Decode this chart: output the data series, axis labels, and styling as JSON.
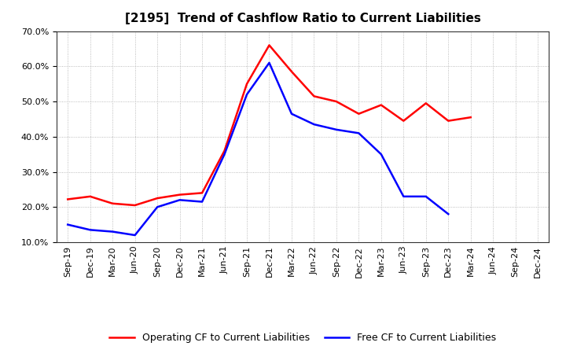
{
  "title": "[2195]  Trend of Cashflow Ratio to Current Liabilities",
  "x_labels": [
    "Sep-19",
    "Dec-19",
    "Mar-20",
    "Jun-20",
    "Sep-20",
    "Dec-20",
    "Mar-21",
    "Jun-21",
    "Sep-21",
    "Dec-21",
    "Mar-22",
    "Jun-22",
    "Sep-22",
    "Dec-22",
    "Mar-23",
    "Jun-23",
    "Sep-23",
    "Dec-23",
    "Mar-24",
    "Jun-24",
    "Sep-24",
    "Dec-24"
  ],
  "operating_cf": [
    22.2,
    23.0,
    21.0,
    20.5,
    22.5,
    23.5,
    24.0,
    36.0,
    55.0,
    66.0,
    58.5,
    51.5,
    50.0,
    46.5,
    49.0,
    44.5,
    49.5,
    44.5,
    45.5,
    null,
    null,
    null
  ],
  "free_cf": [
    15.0,
    13.5,
    13.0,
    12.0,
    20.0,
    22.0,
    21.5,
    35.0,
    52.0,
    61.0,
    46.5,
    43.5,
    42.0,
    41.0,
    35.0,
    23.0,
    23.0,
    18.0,
    null,
    null,
    null,
    null
  ],
  "operating_color": "#ff0000",
  "free_color": "#0000ff",
  "ylim_min": 10.0,
  "ylim_max": 70.0,
  "yticks": [
    10.0,
    20.0,
    30.0,
    40.0,
    50.0,
    60.0,
    70.0
  ],
  "legend_labels": [
    "Operating CF to Current Liabilities",
    "Free CF to Current Liabilities"
  ],
  "background_color": "#ffffff",
  "plot_bg_color": "#ffffff",
  "grid_color": "#aaaaaa",
  "spine_color": "#333333",
  "title_fontsize": 11,
  "tick_fontsize": 8
}
